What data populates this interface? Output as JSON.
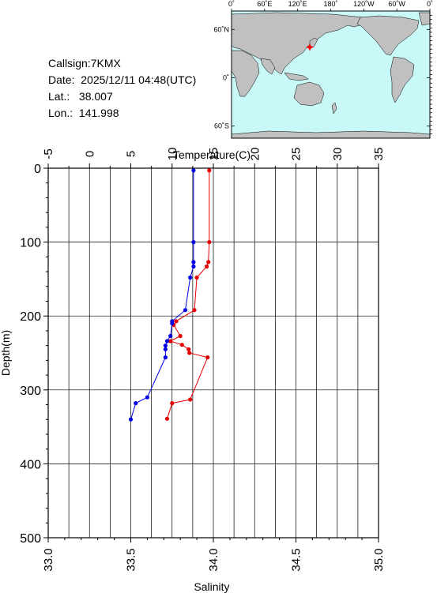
{
  "info": {
    "callsign": "Callsign:7KMX",
    "date": "Date:  2025/12/11 04:48(UTC)",
    "lat": "Lat.:   38.007",
    "lon": "Lon.:  141.998"
  },
  "map": {
    "top_ticks": [
      "0˚",
      "60˚E",
      "120˚E",
      "180˚",
      "120˚W",
      "60˚W",
      "0˚"
    ],
    "lat_ticks": [
      "60˚N",
      "0˚",
      "60˚S"
    ],
    "station": {
      "lat": 38.007,
      "lon": 141.998
    },
    "colors": {
      "ocean": "#c8f8f8",
      "land": "#c0c0c0",
      "marker": "#ff0000"
    }
  },
  "chart_data": {
    "type": "line",
    "ylabel": "Depth(m)",
    "top_axis_label": "Temperature(C)",
    "bottom_axis_label": "Salinity",
    "depth_range": [
      0,
      500
    ],
    "depth_ticks": [
      "0",
      "100",
      "200",
      "300",
      "400",
      "500"
    ],
    "temperature_range": [
      -5,
      35
    ],
    "temperature_ticks": [
      "-5",
      "0",
      "5",
      "10",
      "15",
      "20",
      "25",
      "30",
      "35"
    ],
    "salinity_range": [
      33.0,
      35.0
    ],
    "salinity_ticks": [
      "33.0",
      "33.5",
      "34.0",
      "34.5",
      "35.0"
    ],
    "grid": true,
    "series": [
      {
        "axis": "temperature",
        "color": "#e60000",
        "points": [
          {
            "x": 14.5,
            "depth": 3
          },
          {
            "x": 14.5,
            "depth": 100
          },
          {
            "x": 14.4,
            "depth": 127
          },
          {
            "x": 14.2,
            "depth": 133
          },
          {
            "x": 13.0,
            "depth": 148
          },
          {
            "x": 12.7,
            "depth": 192
          },
          {
            "x": 10.5,
            "depth": 207
          },
          {
            "x": 10.2,
            "depth": 212
          },
          {
            "x": 11.0,
            "depth": 227
          },
          {
            "x": 9.8,
            "depth": 234
          },
          {
            "x": 11.2,
            "depth": 239
          },
          {
            "x": 12.0,
            "depth": 245
          },
          {
            "x": 12.1,
            "depth": 250
          },
          {
            "x": 14.3,
            "depth": 256
          },
          {
            "x": 12.2,
            "depth": 313
          },
          {
            "x": 10.0,
            "depth": 318
          },
          {
            "x": 9.4,
            "depth": 339
          }
        ]
      },
      {
        "axis": "salinity",
        "color": "#0000e6",
        "points": [
          {
            "x": 33.88,
            "depth": 3
          },
          {
            "x": 33.88,
            "depth": 100
          },
          {
            "x": 33.88,
            "depth": 127
          },
          {
            "x": 33.88,
            "depth": 133
          },
          {
            "x": 33.86,
            "depth": 148
          },
          {
            "x": 33.83,
            "depth": 192
          },
          {
            "x": 33.75,
            "depth": 207
          },
          {
            "x": 33.75,
            "depth": 210
          },
          {
            "x": 33.74,
            "depth": 227
          },
          {
            "x": 33.72,
            "depth": 234
          },
          {
            "x": 33.71,
            "depth": 240
          },
          {
            "x": 33.71,
            "depth": 245
          },
          {
            "x": 33.71,
            "depth": 256
          },
          {
            "x": 33.6,
            "depth": 310
          },
          {
            "x": 33.53,
            "depth": 318
          },
          {
            "x": 33.5,
            "depth": 340
          }
        ]
      }
    ]
  }
}
